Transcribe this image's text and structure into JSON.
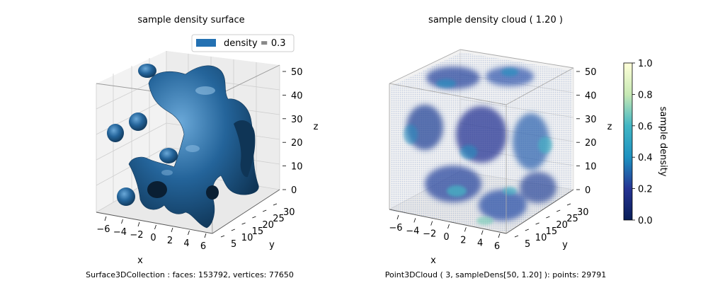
{
  "chart_data": [
    {
      "type": "surface3d",
      "title": "sample density surface",
      "xlabel": "x",
      "ylabel": "y",
      "zlabel": "z",
      "xlim": [
        -7,
        6
      ],
      "ylim": [
        5,
        30
      ],
      "zlim": [
        0,
        50
      ],
      "x_ticks": [
        "−6",
        "−4",
        "−2",
        "0",
        "2",
        "4",
        "6"
      ],
      "y_ticks": [
        "5",
        "10",
        "15",
        "20",
        "25",
        "30"
      ],
      "z_ticks": [
        "0",
        "10",
        "20",
        "30",
        "40",
        "50"
      ],
      "legend": {
        "label": "density = 0.3",
        "color": "#2471b2",
        "placement": "upper-right"
      },
      "surface_color": "#1f5f96",
      "caption": "Surface3DCollection :  faces: 153792,  vertices: 77650"
    },
    {
      "type": "pointcloud3d",
      "title": "sample density cloud ( 1.20 )",
      "xlabel": "x",
      "ylabel": "y",
      "zlabel": "z",
      "xlim": [
        -7,
        6
      ],
      "ylim": [
        5,
        30
      ],
      "zlim": [
        0,
        50
      ],
      "x_ticks": [
        "−6",
        "−4",
        "−2",
        "0",
        "2",
        "4",
        "6"
      ],
      "y_ticks": [
        "5",
        "10",
        "15",
        "20",
        "25",
        "30"
      ],
      "z_ticks": [
        "0",
        "10",
        "20",
        "30",
        "40",
        "50"
      ],
      "colormap": "YlGnBu_r",
      "colorbar": {
        "label": "sample density",
        "range": [
          0.0,
          1.0
        ],
        "ticks": [
          "0.0",
          "0.2",
          "0.4",
          "0.6",
          "0.8",
          "1.0"
        ]
      },
      "caption": "Point3DCloud ( 3, sampleDens[50, 1.20] ):  points: 29791"
    }
  ]
}
